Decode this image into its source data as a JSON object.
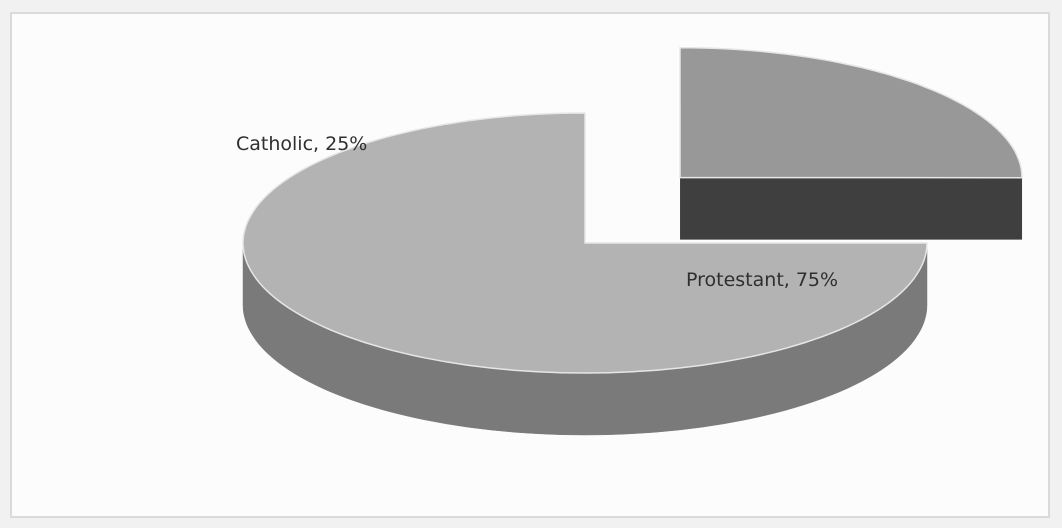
{
  "chart_data": {
    "type": "pie",
    "style": "3d-exploded",
    "categories": [
      "Catholic",
      "Protestant"
    ],
    "values": [
      25,
      75
    ],
    "labels": [
      "Catholic, 25%",
      "Protestant, 75%"
    ],
    "colors": {
      "catholic_top": "#989898",
      "catholic_side": "#4a4a4a",
      "protestant_top": "#b3b3b3",
      "protestant_side": "#7a7a7a"
    },
    "legend": "none"
  }
}
